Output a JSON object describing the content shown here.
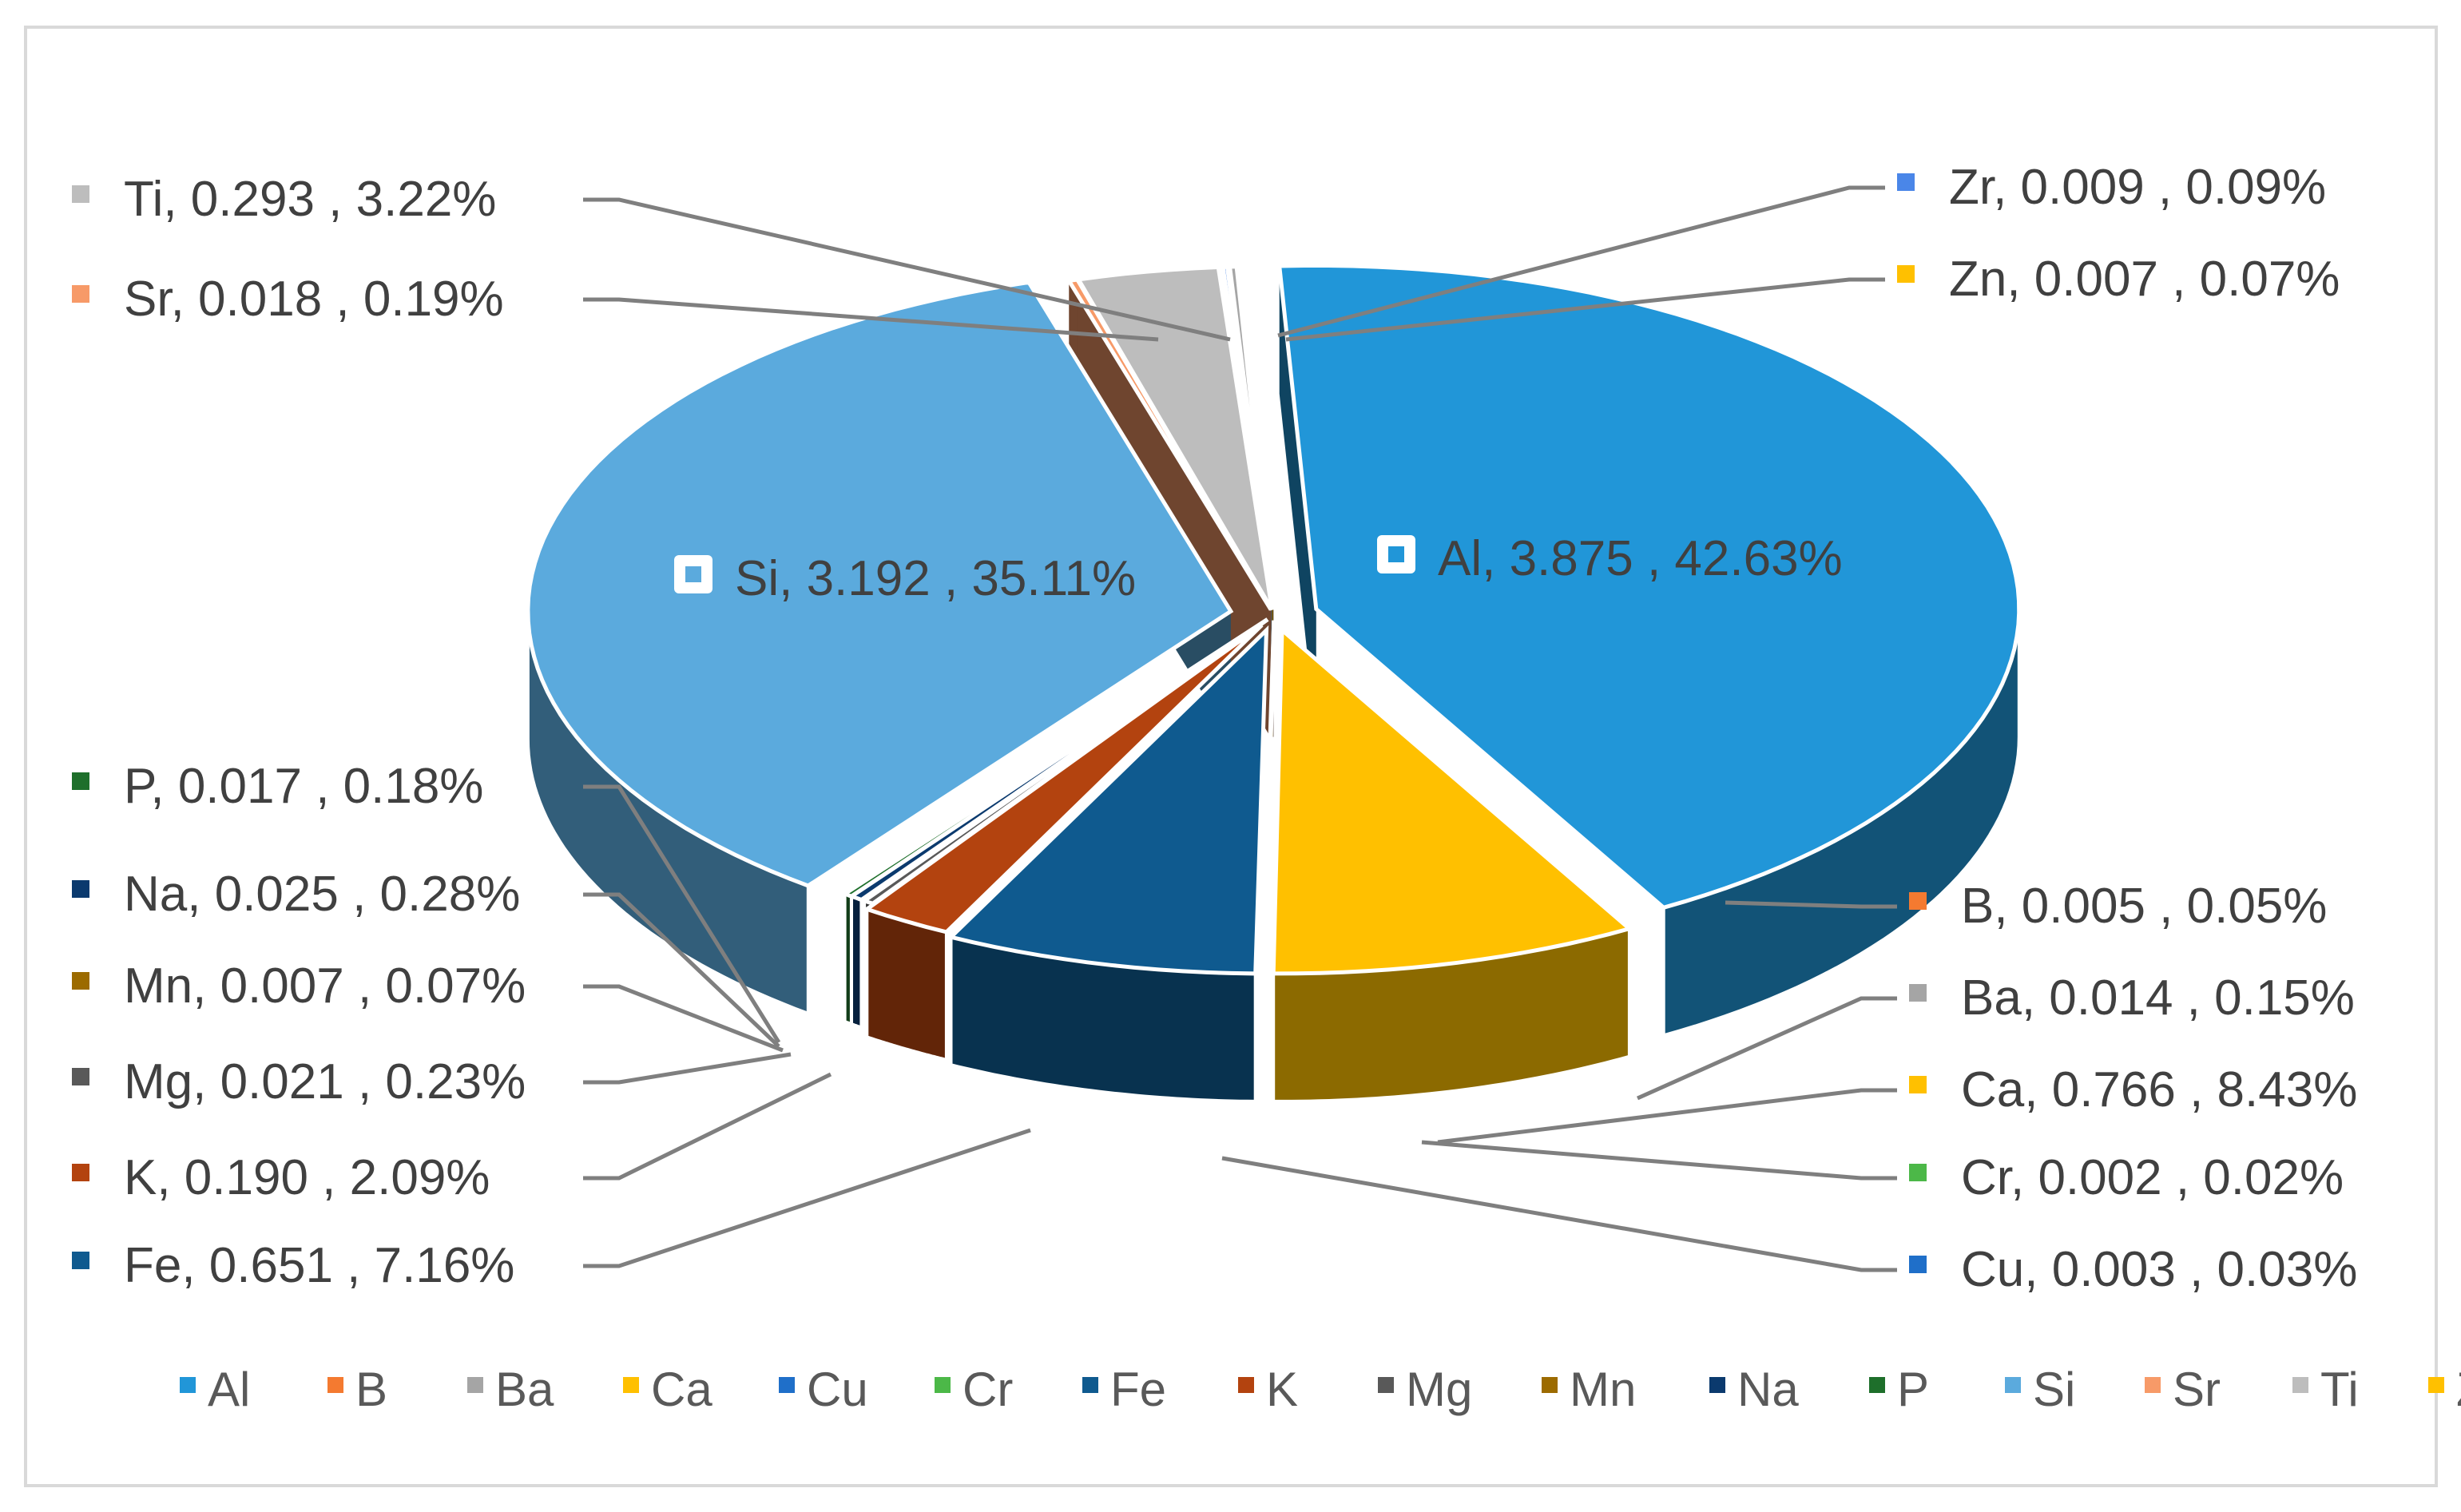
{
  "chart_data": {
    "type": "pie",
    "style": "3d-exploded",
    "value_labels": "name, value , percent",
    "legend_position": "bottom",
    "slices": [
      {
        "name": "Al",
        "value": 3.875,
        "percent": "42.63%",
        "color": "#2196D8"
      },
      {
        "name": "B",
        "value": 0.005,
        "percent": "0.05%",
        "color": "#F47A30"
      },
      {
        "name": "Ba",
        "value": 0.014,
        "percent": "0.15%",
        "color": "#A5A5A5"
      },
      {
        "name": "Ca",
        "value": 0.766,
        "percent": "8.43%",
        "color": "#FFC000"
      },
      {
        "name": "Cu",
        "value": 0.003,
        "percent": "0.03%",
        "color": "#1F6FC9"
      },
      {
        "name": "Cr",
        "value": 0.002,
        "percent": "0.02%",
        "color": "#4CB848"
      },
      {
        "name": "Fe",
        "value": 0.651,
        "percent": "7.16%",
        "color": "#0F5A8F"
      },
      {
        "name": "K",
        "value": 0.19,
        "percent": "2.09%",
        "color": "#B3430F"
      },
      {
        "name": "Mg",
        "value": 0.021,
        "percent": "0.23%",
        "color": "#595959"
      },
      {
        "name": "Mn",
        "value": 0.007,
        "percent": "0.07%",
        "color": "#9C6B00"
      },
      {
        "name": "Na",
        "value": 0.025,
        "percent": "0.28%",
        "color": "#0B3A6E"
      },
      {
        "name": "P",
        "value": 0.017,
        "percent": "0.18%",
        "color": "#1E6F2B"
      },
      {
        "name": "Si",
        "value": 3.192,
        "percent": "35.11%",
        "color": "#5BAADD"
      },
      {
        "name": "Sr",
        "value": 0.018,
        "percent": "0.19%",
        "color": "#F79A68"
      },
      {
        "name": "Ti",
        "value": 0.293,
        "percent": "3.22%",
        "color": "#BDBDBD"
      },
      {
        "name": "Zn",
        "value": 0.007,
        "percent": "0.07%",
        "color": "#FFC000"
      },
      {
        "name": "Zr",
        "value": 0.009,
        "percent": "0.09%",
        "color": "#4A86E8"
      }
    ],
    "slice_order": [
      "Al",
      "Ca",
      "Cr",
      "Cu",
      "Fe",
      "K",
      "Mg",
      "Mn",
      "Na",
      "P",
      "Si",
      "Sr",
      "Ti",
      "Zn",
      "Zr",
      "B",
      "Ba"
    ]
  }
}
